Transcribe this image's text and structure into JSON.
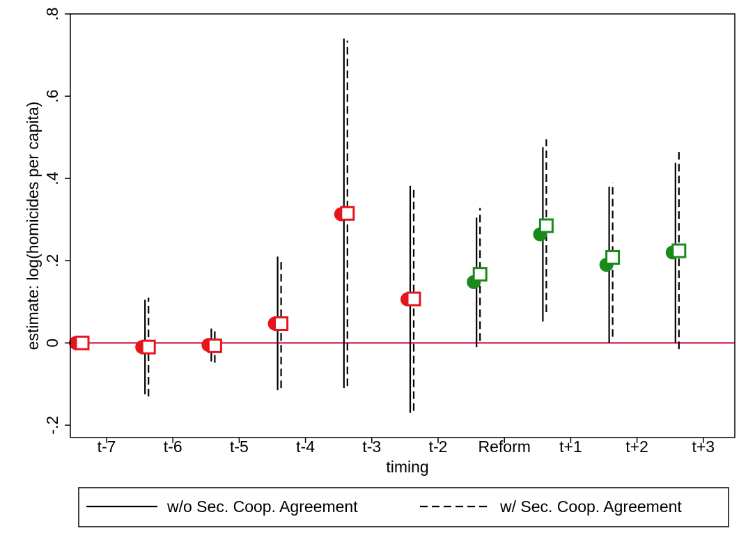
{
  "chart_data": {
    "type": "scatter",
    "xlabel": "timing",
    "ylabel": "estimate: log(homicides per capita)",
    "categories": [
      "t-7",
      "t-6",
      "t-5",
      "t-4",
      "t-3",
      "t-2",
      "Reform",
      "t+1",
      "t+2",
      "t+3"
    ],
    "ylim": [
      -0.23,
      0.8
    ],
    "yticks": [
      -0.2,
      0,
      0.2,
      0.4,
      0.6,
      0.8
    ],
    "ytick_labels": [
      "-.2",
      "0",
      ".2",
      ".4",
      ".6",
      ".8"
    ],
    "grid": false,
    "zero_line": {
      "y": 0,
      "color": "#d0103a"
    },
    "series": [
      {
        "name": "w/o Sec. Coop. Agreement",
        "line_style": "solid",
        "marker": "circle",
        "points": [
          {
            "x": "t-7",
            "estimate": 0.0,
            "ci_low": null,
            "ci_high": null,
            "color": "#e8141c"
          },
          {
            "x": "t-6",
            "estimate": -0.01,
            "ci_low": -0.125,
            "ci_high": 0.105,
            "color": "#e8141c"
          },
          {
            "x": "t-5",
            "estimate": -0.005,
            "ci_low": -0.045,
            "ci_high": 0.035,
            "color": "#e8141c"
          },
          {
            "x": "t-4",
            "estimate": 0.047,
            "ci_low": -0.115,
            "ci_high": 0.21,
            "color": "#e8141c"
          },
          {
            "x": "t-3",
            "estimate": 0.313,
            "ci_low": -0.11,
            "ci_high": 0.74,
            "color": "#e8141c"
          },
          {
            "x": "t-2",
            "estimate": 0.106,
            "ci_low": -0.17,
            "ci_high": 0.382,
            "color": "#e8141c"
          },
          {
            "x": "Reform",
            "estimate": 0.148,
            "ci_low": -0.01,
            "ci_high": 0.305,
            "color": "#1a8a1a"
          },
          {
            "x": "t+1",
            "estimate": 0.264,
            "ci_low": 0.052,
            "ci_high": 0.476,
            "color": "#1a8a1a"
          },
          {
            "x": "t+2",
            "estimate": 0.19,
            "ci_low": 0.0,
            "ci_high": 0.38,
            "color": "#1a8a1a"
          },
          {
            "x": "t+3",
            "estimate": 0.22,
            "ci_low": 0.0,
            "ci_high": 0.438,
            "color": "#1a8a1a"
          }
        ]
      },
      {
        "name": "w/ Sec. Coop. Agreement",
        "line_style": "dashed",
        "marker": "hollow-square",
        "points": [
          {
            "x": "t-7",
            "estimate": 0.0,
            "ci_low": null,
            "ci_high": null,
            "color": "#e8141c"
          },
          {
            "x": "t-6",
            "estimate": -0.01,
            "ci_low": -0.13,
            "ci_high": 0.11,
            "color": "#e8141c"
          },
          {
            "x": "t-5",
            "estimate": -0.007,
            "ci_low": -0.048,
            "ci_high": 0.03,
            "color": "#e8141c"
          },
          {
            "x": "t-4",
            "estimate": 0.047,
            "ci_low": -0.11,
            "ci_high": 0.205,
            "color": "#e8141c"
          },
          {
            "x": "t-3",
            "estimate": 0.315,
            "ci_low": -0.105,
            "ci_high": 0.735,
            "color": "#e8141c"
          },
          {
            "x": "t-2",
            "estimate": 0.107,
            "ci_low": -0.165,
            "ci_high": 0.375,
            "color": "#e8141c"
          },
          {
            "x": "Reform",
            "estimate": 0.167,
            "ci_low": 0.005,
            "ci_high": 0.328,
            "color": "#1a8a1a"
          },
          {
            "x": "t+1",
            "estimate": 0.285,
            "ci_low": 0.075,
            "ci_high": 0.495,
            "color": "#1a8a1a"
          },
          {
            "x": "t+2",
            "estimate": 0.208,
            "ci_low": 0.015,
            "ci_high": 0.39,
            "color": "#1a8a1a"
          },
          {
            "x": "t+3",
            "estimate": 0.224,
            "ci_low": -0.015,
            "ci_high": 0.465,
            "color": "#1a8a1a"
          }
        ]
      }
    ],
    "legend": {
      "position": "bottom",
      "entries": [
        "w/o Sec. Coop. Agreement",
        "w/ Sec. Coop. Agreement"
      ]
    }
  }
}
